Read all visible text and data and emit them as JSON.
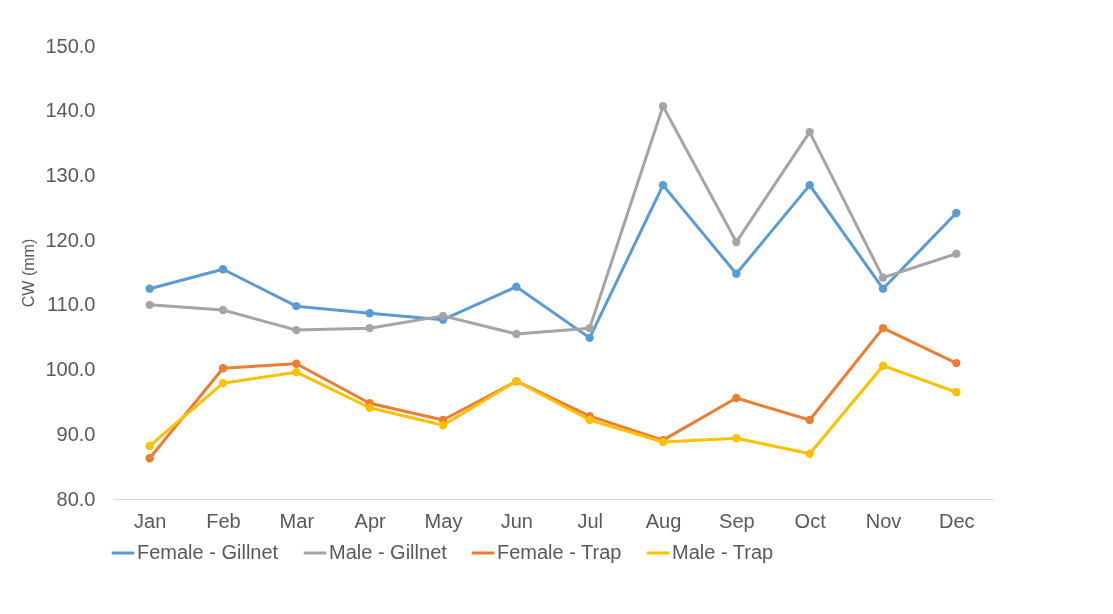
{
  "chart_data": {
    "type": "line",
    "ylabel": "CW (mm)",
    "categories": [
      "Jan",
      "Feb",
      "Mar",
      "Apr",
      "May",
      "Jun",
      "Jul",
      "Aug",
      "Sep",
      "Oct",
      "Nov",
      "Dec"
    ],
    "series": [
      {
        "name": "Female - Gillnet",
        "color": "#5b9bd5",
        "values": [
          112.5,
          115.5,
          109.8,
          108.7,
          107.7,
          112.8,
          104.9,
          128.5,
          114.8,
          128.5,
          112.5,
          124.2
        ]
      },
      {
        "name": "Male - Gillnet",
        "color": "#a5a5a5",
        "values": [
          110.0,
          109.2,
          106.1,
          106.4,
          108.3,
          105.5,
          106.4,
          140.7,
          119.7,
          136.7,
          114.2,
          117.9
        ]
      },
      {
        "name": "Female - Trap",
        "color": "#ed7d31",
        "values": [
          86.3,
          100.2,
          100.9,
          94.8,
          92.2,
          98.2,
          92.8,
          89.1,
          95.6,
          92.2,
          106.4,
          101.0
        ]
      },
      {
        "name": "Male - Trap",
        "color": "#ffc000",
        "values": [
          88.2,
          97.9,
          99.6,
          94.1,
          91.4,
          98.2,
          92.2,
          88.8,
          89.4,
          87.0,
          100.6,
          96.5
        ]
      }
    ],
    "ylim": [
      80,
      150
    ],
    "yticks": [
      {
        "value": 80,
        "label": "80.0"
      },
      {
        "value": 90,
        "label": "90.0"
      },
      {
        "value": 100,
        "label": "100.0"
      },
      {
        "value": 110,
        "label": "110.0"
      },
      {
        "value": 120,
        "label": "120.0"
      },
      {
        "value": 130,
        "label": "130.0"
      },
      {
        "value": 140,
        "label": "140.0"
      },
      {
        "value": 150,
        "label": "150.0"
      }
    ],
    "grid": false,
    "legend": "bottom",
    "marker": "circle",
    "line_style": "solid"
  }
}
